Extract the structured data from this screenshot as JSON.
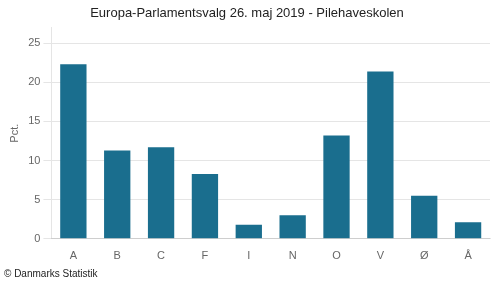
{
  "chart_data": {
    "type": "bar",
    "title": "Europa-Parlamentsvalg 26. maj 2019 - Pilehaveskolen",
    "categories": [
      "A",
      "B",
      "C",
      "F",
      "I",
      "N",
      "O",
      "V",
      "Ø",
      "Å"
    ],
    "values": [
      22.3,
      11.3,
      11.7,
      8.3,
      1.8,
      3.0,
      13.2,
      21.4,
      5.5,
      2.1
    ],
    "color": "#1a6e8e",
    "ylabel": "Pct.",
    "footer": "© Danmarks Statistik",
    "ylim": [
      0,
      27
    ],
    "yticks": [
      0,
      5,
      10,
      15,
      20,
      25
    ],
    "grid": true
  }
}
